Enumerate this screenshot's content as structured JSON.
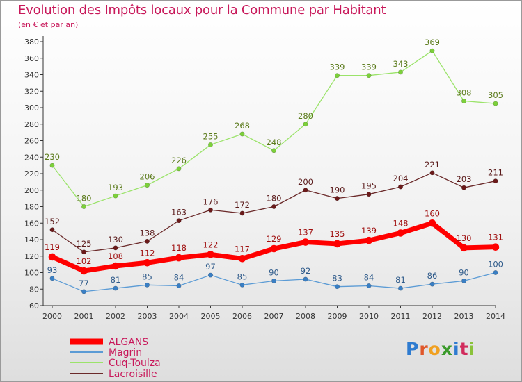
{
  "title": "Evolution des Impôts locaux pour la Commune par Habitant",
  "subtitle": "(en € et par an)",
  "logo": {
    "text": "Proxiti",
    "letters": [
      {
        "ch": "P",
        "color": "#2e7bd0"
      },
      {
        "ch": "r",
        "color": "#e0572a"
      },
      {
        "ch": "o",
        "color": "#f0a020"
      },
      {
        "ch": "x",
        "color": "#3a9a2a"
      },
      {
        "ch": "i",
        "color": "#2e7bd0"
      },
      {
        "ch": "t",
        "color": "#d12b5c"
      },
      {
        "ch": "i",
        "color": "#8ac23a"
      }
    ]
  },
  "chart_data": {
    "type": "line",
    "title": "Evolution des Impôts locaux pour la Commune par Habitant",
    "subtitle": "(en € et par an)",
    "xlabel": "",
    "ylabel": "",
    "x": [
      "2000",
      "2001",
      "2002",
      "2003",
      "2004",
      "2005",
      "2006",
      "2007",
      "2008",
      "2009",
      "2010",
      "2011",
      "2012",
      "2013",
      "2014"
    ],
    "ylim": [
      60,
      380
    ],
    "yticks": [
      60,
      80,
      100,
      120,
      140,
      160,
      180,
      200,
      220,
      240,
      260,
      280,
      300,
      320,
      340,
      360,
      380
    ],
    "grid": false,
    "legend_position": "bottom-left",
    "series": [
      {
        "name": "ALGANS",
        "color": "#ff0000",
        "marker": "#ff0000",
        "width": 7,
        "values": [
          119,
          102,
          108,
          112,
          118,
          122,
          117,
          129,
          137,
          135,
          139,
          148,
          160,
          130,
          131
        ],
        "label_color": "#a01010"
      },
      {
        "name": "Magrin",
        "color": "#5b9bd5",
        "marker": "#3a7fc4",
        "width": 1.3,
        "values": [
          93,
          77,
          81,
          85,
          84,
          97,
          85,
          90,
          92,
          83,
          84,
          81,
          86,
          90,
          100
        ],
        "label_color": "#2e5a8a"
      },
      {
        "name": "Cuq-Toulza",
        "color": "#9be36a",
        "marker": "#7cd03a",
        "width": 1.3,
        "values": [
          230,
          180,
          193,
          206,
          226,
          255,
          268,
          248,
          280,
          339,
          339,
          343,
          369,
          308,
          305
        ],
        "label_color": "#5a7a1a"
      },
      {
        "name": "Lacroisille",
        "color": "#6b2a2a",
        "marker": "#6b1a1a",
        "width": 1.3,
        "values": [
          152,
          125,
          130,
          138,
          163,
          176,
          172,
          180,
          200,
          190,
          195,
          204,
          221,
          203,
          211
        ],
        "label_color": "#5a1a1a"
      }
    ]
  }
}
